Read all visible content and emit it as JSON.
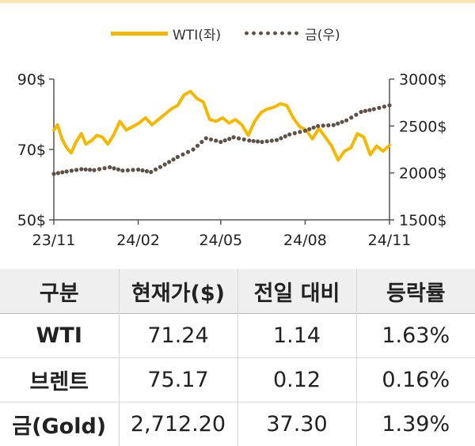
{
  "chart_data": {
    "type": "line",
    "x_ticks": [
      "23/11",
      "24/02",
      "24/05",
      "24/08",
      "24/11"
    ],
    "y_left": {
      "ticks": [
        "90$",
        "70$",
        "50$"
      ],
      "range": [
        50,
        90
      ]
    },
    "y_right": {
      "ticks": [
        "3000$",
        "2500$",
        "2000$",
        "1500$"
      ],
      "range": [
        1500,
        3000
      ]
    },
    "legend_position": "top",
    "grid": false,
    "series": [
      {
        "name": "WTI(좌)",
        "axis": "left",
        "style": "line",
        "color": "#f5b800",
        "x": [
          "2023-11-01",
          "2023-11-05",
          "2023-11-10",
          "2023-11-15",
          "2023-11-20",
          "2023-11-25",
          "2023-12-01",
          "2023-12-06",
          "2023-12-12",
          "2023-12-18",
          "2023-12-24",
          "2023-12-30",
          "2024-01-05",
          "2024-01-12",
          "2024-01-19",
          "2024-01-26",
          "2024-02-02",
          "2024-02-09",
          "2024-02-16",
          "2024-02-23",
          "2024-03-01",
          "2024-03-08",
          "2024-03-15",
          "2024-03-22",
          "2024-03-29",
          "2024-04-05",
          "2024-04-12",
          "2024-04-19",
          "2024-04-26",
          "2024-05-03",
          "2024-05-10",
          "2024-05-17",
          "2024-05-24",
          "2024-05-31",
          "2024-06-07",
          "2024-06-14",
          "2024-06-21",
          "2024-06-28",
          "2024-07-05",
          "2024-07-12",
          "2024-07-19",
          "2024-07-26",
          "2024-08-02",
          "2024-08-09",
          "2024-08-16",
          "2024-08-23",
          "2024-08-30",
          "2024-09-06",
          "2024-09-13",
          "2024-09-20",
          "2024-09-27",
          "2024-10-04",
          "2024-10-11",
          "2024-10-18",
          "2024-10-25",
          "2024-11-01"
        ],
        "values": [
          75.5,
          77.0,
          73.0,
          70.5,
          69.0,
          72.0,
          74.5,
          71.5,
          72.5,
          74.0,
          73.5,
          71.5,
          74.0,
          78.0,
          75.5,
          76.5,
          77.5,
          79.0,
          77.0,
          78.5,
          80.0,
          81.5,
          82.5,
          85.5,
          86.5,
          84.5,
          83.5,
          78.5,
          78.0,
          79.0,
          77.5,
          78.5,
          77.0,
          74.0,
          78.0,
          80.5,
          81.5,
          82.0,
          83.0,
          82.5,
          79.0,
          76.5,
          75.5,
          73.0,
          76.0,
          73.5,
          71.0,
          67.0,
          69.5,
          70.5,
          74.5,
          73.5,
          68.5,
          71.0,
          69.5,
          71.2
        ]
      },
      {
        "name": "금(우)",
        "axis": "right",
        "style": "dotted",
        "color": "#5e5046",
        "x": [
          "2023-11-01",
          "2023-11-15",
          "2023-12-01",
          "2023-12-15",
          "2024-01-01",
          "2024-01-15",
          "2024-02-01",
          "2024-02-15",
          "2024-03-01",
          "2024-03-15",
          "2024-04-01",
          "2024-04-15",
          "2024-05-01",
          "2024-05-15",
          "2024-06-01",
          "2024-06-15",
          "2024-07-01",
          "2024-07-15",
          "2024-08-01",
          "2024-08-15",
          "2024-09-01",
          "2024-09-15",
          "2024-10-01",
          "2024-10-15",
          "2024-11-01"
        ],
        "values": [
          1990,
          2015,
          2040,
          2030,
          2060,
          2025,
          2035,
          2010,
          2090,
          2170,
          2250,
          2370,
          2330,
          2380,
          2345,
          2330,
          2350,
          2410,
          2450,
          2500,
          2510,
          2560,
          2650,
          2680,
          2720
        ]
      }
    ]
  },
  "legend": {
    "wti_label": "WTI(좌)",
    "gold_label": "금(우)"
  },
  "table": {
    "headers": [
      "구분",
      "현재가($)",
      "전일 대비",
      "등락률"
    ],
    "rows": [
      [
        "WTI",
        "71.24",
        "1.14",
        "1.63%"
      ],
      [
        "브렌트",
        "75.17",
        "0.12",
        "0.16%"
      ],
      [
        "금(Gold)",
        "2,712.20",
        "37.30",
        "1.39%"
      ]
    ]
  }
}
